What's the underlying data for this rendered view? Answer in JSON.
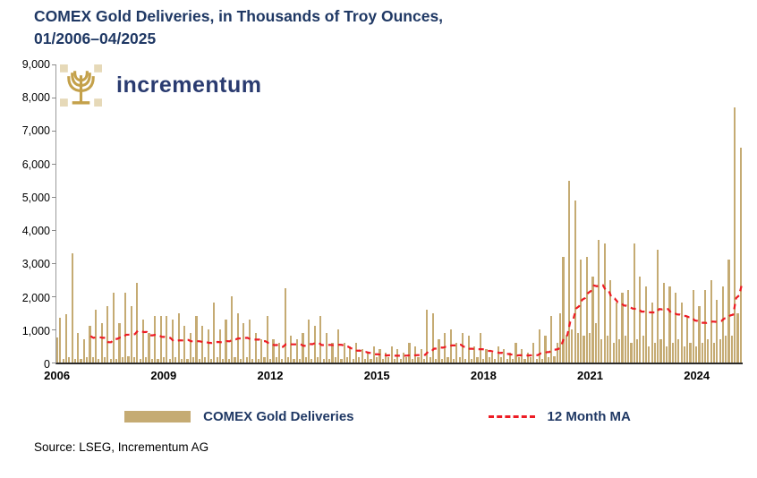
{
  "title": {
    "line1": "COMEX Gold Deliveries, in Thousands of Troy Ounces,",
    "line2": "01/2006–04/2025"
  },
  "logo": {
    "text": "incrementum"
  },
  "legend": {
    "bar_label": "COMEX Gold Deliveries",
    "ma_label": "12 Month MA"
  },
  "source": "Source: LSEG, Incrementum AG",
  "colors": {
    "bar": "#C5AB73",
    "ma_line": "#ED1C24",
    "title": "#1F3864",
    "logo_gold": "#C4A14B",
    "logo_gold_light": "#E6D9B8"
  },
  "chart_data": {
    "type": "bar",
    "title": "COMEX Gold Deliveries, in Thousands of Troy Ounces, 01/2006–04/2025",
    "frequency": "monthly",
    "x_start": "2006-01",
    "x_end": "2025-04",
    "ylim": [
      0,
      9000
    ],
    "grid": false,
    "legend_position": "bottom",
    "y_tick_labels": [
      "0",
      "1,000",
      "2,000",
      "3,000",
      "4,000",
      "5,000",
      "6,000",
      "7,000",
      "8,000",
      "9,000"
    ],
    "x_tick_labels": [
      "2006",
      "2009",
      "2012",
      "2015",
      "2018",
      "2021",
      "2024"
    ],
    "x_tick_start_year": 2006,
    "series": [
      {
        "name": "COMEX Gold Deliveries",
        "type": "bar",
        "values": [
          750,
          1350,
          100,
          1450,
          150,
          3300,
          100,
          900,
          100,
          700,
          150,
          1100,
          150,
          1600,
          100,
          1200,
          150,
          1700,
          100,
          2100,
          100,
          1200,
          150,
          2100,
          200,
          1700,
          150,
          2400,
          100,
          1300,
          150,
          900,
          100,
          1400,
          100,
          1400,
          150,
          1400,
          100,
          1300,
          150,
          1500,
          100,
          1100,
          100,
          900,
          150,
          1400,
          100,
          1100,
          150,
          1000,
          100,
          1800,
          150,
          1000,
          100,
          1300,
          100,
          2000,
          150,
          1500,
          100,
          1200,
          150,
          1300,
          100,
          900,
          100,
          700,
          150,
          1400,
          100,
          700,
          150,
          600,
          100,
          2250,
          150,
          800,
          100,
          700,
          100,
          900,
          150,
          1300,
          100,
          1100,
          150,
          1400,
          100,
          900,
          100,
          600,
          150,
          1000,
          100,
          600,
          150,
          500,
          100,
          600,
          150,
          400,
          100,
          300,
          100,
          500,
          150,
          400,
          100,
          300,
          150,
          500,
          100,
          400,
          100,
          300,
          150,
          600,
          100,
          500,
          150,
          400,
          100,
          1600,
          150,
          1500,
          100,
          700,
          100,
          900,
          150,
          1000,
          100,
          600,
          150,
          900,
          100,
          800,
          100,
          500,
          150,
          900,
          100,
          400,
          150,
          300,
          100,
          500,
          150,
          400,
          100,
          300,
          100,
          600,
          150,
          400,
          100,
          300,
          150,
          600,
          100,
          1000,
          100,
          800,
          150,
          1400,
          200,
          600,
          1500,
          3200,
          800,
          5500,
          1000,
          4900,
          900,
          3100,
          800,
          3200,
          900,
          2600,
          1200,
          3700,
          700,
          3600,
          800,
          2500,
          600,
          1800,
          700,
          2100,
          800,
          2200,
          600,
          3600,
          700,
          2600,
          800,
          2300,
          500,
          1800,
          600,
          3400,
          700,
          2400,
          500,
          2300,
          600,
          2100,
          700,
          1800,
          500,
          1400,
          600,
          2200,
          500,
          1700,
          600,
          2200,
          700,
          2500,
          600,
          1900,
          700,
          2300,
          800,
          3100,
          800,
          7700,
          1500,
          6500
        ]
      },
      {
        "name": "12 Month MA",
        "type": "line",
        "style": "dashed",
        "derived": "12-month trailing average of COMEX Gold Deliveries values"
      }
    ]
  }
}
